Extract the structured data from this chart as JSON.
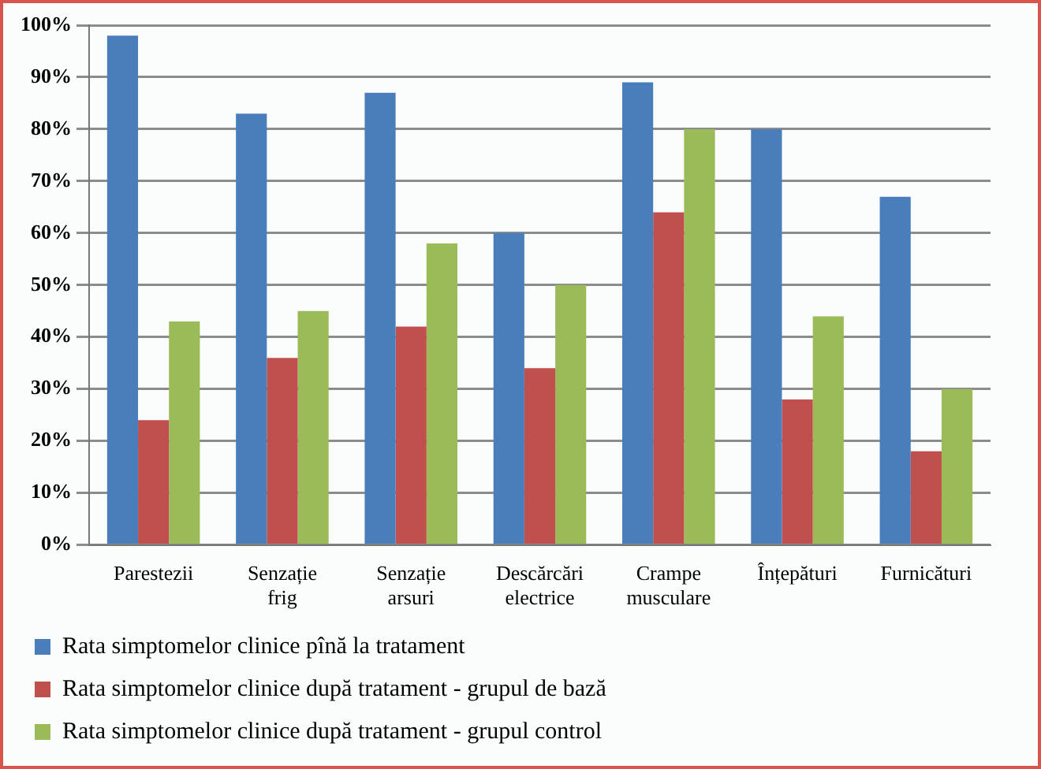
{
  "chart_data": {
    "type": "bar",
    "categories": [
      "Parestezii",
      "Senzație\nfrig",
      "Senzație\narsuri",
      "Descărcări\nelectrice",
      "Crampe\nmusculare",
      "Înțepături",
      "Furnicături"
    ],
    "series": [
      {
        "name": "Rata simptomelor clinice pînă la tratament",
        "color": "#4a7ebb",
        "values": [
          98,
          83,
          87,
          60,
          89,
          80,
          67
        ]
      },
      {
        "name": "Rata simptomelor clinice după tratament - grupul de bază",
        "color": "#c0504d",
        "values": [
          24,
          36,
          42,
          34,
          64,
          28,
          18
        ]
      },
      {
        "name": "Rata simptomelor clinice după tratament - grupul control",
        "color": "#9bbb59",
        "values": [
          43,
          45,
          58,
          50,
          80,
          44,
          30
        ]
      }
    ],
    "ylim": [
      0,
      100
    ],
    "yticks": [
      {
        "value": 0,
        "label": "0%"
      },
      {
        "value": 10,
        "label": "10%"
      },
      {
        "value": 20,
        "label": "20%"
      },
      {
        "value": 30,
        "label": "30%"
      },
      {
        "value": 40,
        "label": "40%"
      },
      {
        "value": 50,
        "label": "50%"
      },
      {
        "value": 60,
        "label": "60%"
      },
      {
        "value": 70,
        "label": "70%"
      },
      {
        "value": 80,
        "label": "80%"
      },
      {
        "value": 90,
        "label": "90%"
      },
      {
        "value": 100,
        "label": "100%"
      }
    ],
    "grid": "y",
    "legend": "bottom"
  }
}
